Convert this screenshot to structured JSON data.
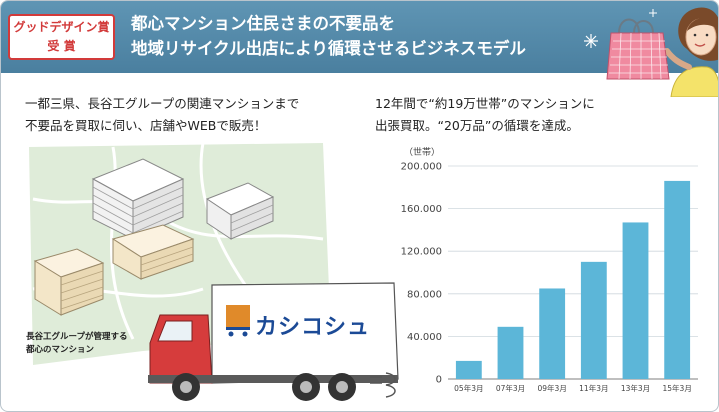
{
  "award": {
    "line1": "グッドデザイン賞",
    "line2": "受 賞"
  },
  "headline": {
    "line1": "都心マンション住民さまの不要品を",
    "line2": "地域リサイクル出店により循環させるビジネスモデル"
  },
  "left": {
    "lead_line1": "一都三県、長谷工グループの関連マンションまで",
    "lead_line2": "不要品を買取に伺い、店舗やWEBで販売！",
    "map_caption_line1": "長谷工グループが管理する",
    "map_caption_line2": "都心のマンション",
    "logo_text": "カシコシュ"
  },
  "right": {
    "lead_line1": "12年間で“約19万世帯”のマンションに",
    "lead_line2": "出張買取。“20万品”の循環を達成。"
  },
  "colors": {
    "header": "#5a8fae",
    "award_red": "#d23a3a",
    "bar": "#5cb6d8",
    "map_green": "#dfecd9",
    "logo_blue": "#1b4a96",
    "truck_red": "#d63c3c"
  },
  "chart_data": {
    "type": "bar",
    "ylabel": "（世帯）",
    "categories": [
      "05年3月",
      "07年3月",
      "09年3月",
      "11年3月",
      "13年3月",
      "15年3月"
    ],
    "values": [
      17000,
      49000,
      85000,
      110000,
      147000,
      186000
    ],
    "ylim": [
      0,
      200000
    ],
    "yticks": [
      0,
      40000,
      80000,
      120000,
      160000,
      200000
    ],
    "ytick_labels": [
      "0",
      "40.000",
      "80.000",
      "120.000",
      "160.000",
      "200.000"
    ],
    "grid": true,
    "legend": "none"
  }
}
